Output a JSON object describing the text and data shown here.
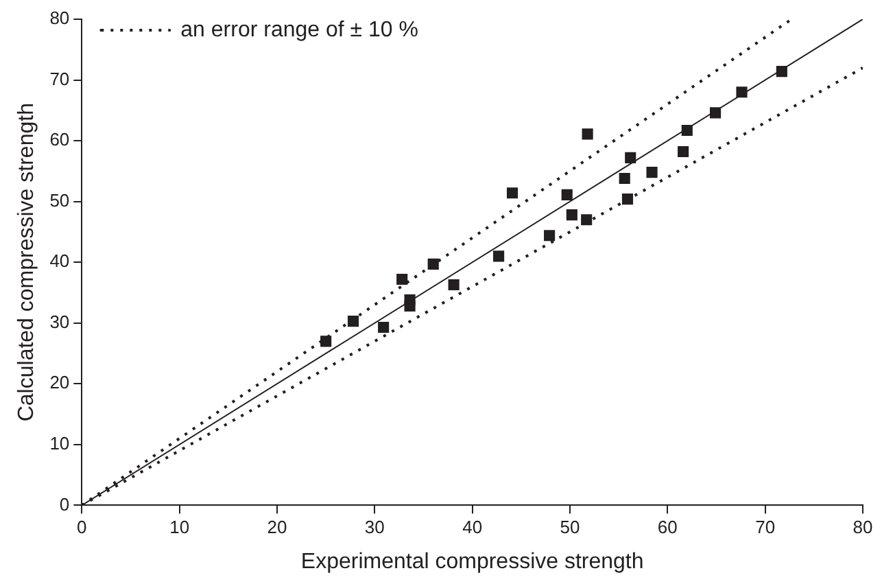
{
  "chart_data": {
    "type": "scatter",
    "xlabel": "Experimental compressive strength",
    "ylabel": "Calculated compressive strength",
    "xlim": [
      0,
      80
    ],
    "ylim": [
      0,
      80
    ],
    "xticks": [
      0,
      10,
      20,
      30,
      40,
      50,
      60,
      70,
      80
    ],
    "yticks": [
      0,
      10,
      20,
      30,
      40,
      50,
      60,
      70,
      80
    ],
    "grid": false,
    "legend": "top left",
    "series": [
      {
        "type": "scatter",
        "color": "#231f20",
        "marker": "square",
        "x": [
          25,
          27.8,
          30.9,
          32.8,
          33.6,
          33.6,
          36,
          38.1,
          42.7,
          44.1,
          47.9,
          49.7,
          50.2,
          51.7,
          51.8,
          55.6,
          55.9,
          56.2,
          58.4,
          61.6,
          62,
          64.9,
          67.6,
          71.7
        ],
        "values": [
          27,
          30.3,
          29.3,
          37.2,
          33.8,
          32.8,
          39.7,
          36.3,
          41,
          51.4,
          44.4,
          51.1,
          47.8,
          47,
          61.1,
          53.8,
          50.4,
          57.2,
          54.8,
          58.2,
          61.7,
          64.6,
          68,
          71.4
        ]
      },
      {
        "type": "line",
        "color": "#231f20",
        "marker": "none",
        "line_style": "solid",
        "x": [
          0,
          80
        ],
        "values": [
          0,
          80
        ]
      },
      {
        "type": "line",
        "name": "an error range of ± 10 %",
        "color": "#231f20",
        "marker": "none",
        "line_style": "dotted",
        "x": [
          0,
          72.7
        ],
        "values": [
          0,
          80
        ]
      },
      {
        "type": "line",
        "color": "#231f20",
        "marker": "none",
        "line_style": "dotted",
        "x": [
          0,
          80
        ],
        "values": [
          0,
          72
        ]
      }
    ]
  }
}
